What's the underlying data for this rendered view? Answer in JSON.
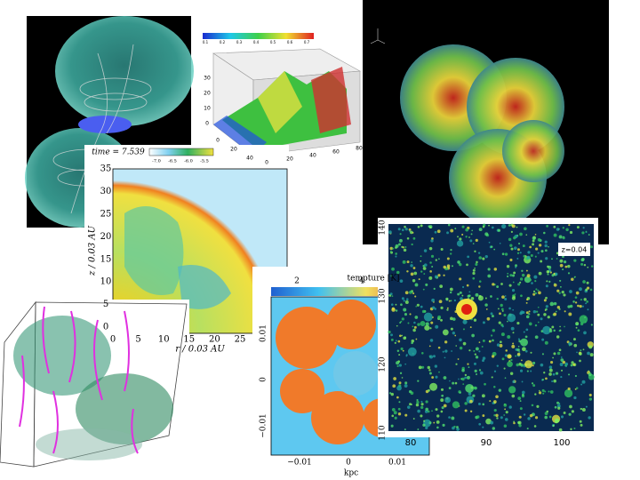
{
  "panels": {
    "box3d": {
      "colorbar_ticks": [
        "0.1",
        "0.2",
        "0.3",
        "0.4",
        "0.5",
        "0.6",
        "0.7"
      ],
      "z_ticks": [
        "30",
        "20",
        "10",
        "0"
      ],
      "x_ticks": [
        "0",
        "20",
        "40"
      ],
      "y_ticks": [
        "0",
        "20",
        "40",
        "60",
        "80"
      ]
    },
    "jet": {
      "time_label": "time = 7.539",
      "colorbar_ticks": [
        "-7.0",
        "-6.5",
        "-6.0",
        "-5.5"
      ],
      "y_ticks": [
        "0",
        "5",
        "10",
        "15",
        "20",
        "25",
        "30",
        "35"
      ],
      "x_ticks": [
        "0",
        "5",
        "10",
        "15",
        "20",
        "25"
      ],
      "x_label": "r / 0.03 AU",
      "y_label": "z / 0.03 AU"
    },
    "temperature": {
      "title": "tempture [K]",
      "colorbar_ticks": [
        "2",
        "4"
      ],
      "y_ticks": [
        "0.01",
        "0",
        "−0.01"
      ],
      "x_ticks": [
        "−0.01",
        "0",
        "0.01"
      ],
      "x_label": "kpc"
    },
    "galaxy": {
      "redshift": "z=0.04",
      "y_ticks": [
        "140",
        "130",
        "120",
        "110"
      ],
      "x_ticks": [
        "80",
        "90",
        "100"
      ]
    }
  }
}
